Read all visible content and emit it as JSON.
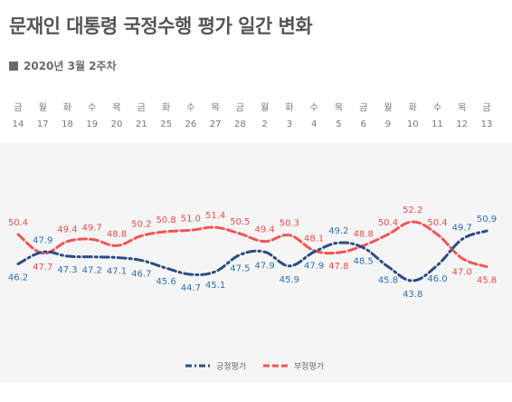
{
  "header": {
    "title": "문재인 대통령 국정수행 평가 일간 변화",
    "subtitle": "2020년 3월 2주차"
  },
  "colors": {
    "positive": "#2a4d85",
    "negative": "#f05555",
    "positive_label": "#2e6fae",
    "negative_label": "#e84c4c"
  },
  "chart_data": {
    "type": "line",
    "days": [
      "금",
      "월",
      "화",
      "수",
      "목",
      "금",
      "화",
      "수",
      "목",
      "금",
      "월",
      "화",
      "수",
      "목",
      "금",
      "월",
      "화",
      "수",
      "목",
      "금"
    ],
    "x": [
      "14",
      "17",
      "18",
      "19",
      "20",
      "21",
      "25",
      "26",
      "27",
      "28",
      "2",
      "3",
      "4",
      "5",
      "6",
      "9",
      "10",
      "11",
      "12",
      "13"
    ],
    "series": [
      {
        "name": "긍정평가",
        "values": [
          46.2,
          47.9,
          47.3,
          47.2,
          47.1,
          46.7,
          45.6,
          44.7,
          45.1,
          47.5,
          47.9,
          45.9,
          47.9,
          49.2,
          48.5,
          45.8,
          43.8,
          46.0,
          49.7,
          50.9
        ],
        "label_pos": [
          "below",
          "above",
          "below",
          "below",
          "below",
          "below",
          "below",
          "below",
          "below",
          "below",
          "below",
          "below",
          "below",
          "above",
          "below",
          "below",
          "below",
          "below",
          "above",
          "above"
        ],
        "style": "dash-dot"
      },
      {
        "name": "부정평가",
        "values": [
          50.4,
          47.7,
          49.4,
          49.7,
          48.8,
          50.2,
          50.8,
          51.0,
          51.4,
          50.5,
          49.4,
          50.3,
          48.1,
          47.8,
          48.8,
          50.4,
          52.2,
          50.4,
          47.0,
          45.8
        ],
        "label_pos": [
          "above",
          "below",
          "above",
          "above",
          "above",
          "above",
          "above",
          "above",
          "above",
          "above",
          "above",
          "above",
          "above",
          "below",
          "above",
          "above",
          "above",
          "above",
          "below",
          "below"
        ],
        "style": "dashed"
      }
    ],
    "ylim": [
      38,
      58
    ],
    "legend": "bottom-center",
    "grid": false
  }
}
